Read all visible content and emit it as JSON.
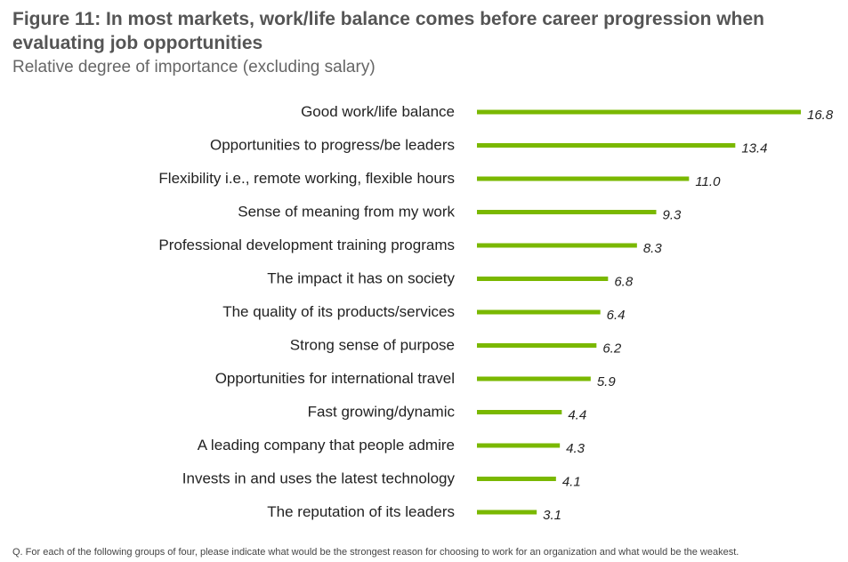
{
  "header": {
    "title": "Figure 11: In most markets, work/life balance comes before career progression when evaluating job opportunities",
    "subtitle": "Relative degree of importance (excluding salary)"
  },
  "footnote": "Q. For each of the following groups of four, please indicate what would be the strongest reason for choosing to work for an organization and what would be the weakest.",
  "colors": {
    "bar": "#7ab800"
  },
  "chart_data": {
    "type": "bar",
    "orientation": "horizontal",
    "title": "Figure 11: In most markets, work/life balance comes before career progression when evaluating job opportunities",
    "subtitle": "Relative degree of importance (excluding salary)",
    "categories": [
      "Good work/life balance",
      "Opportunities to progress/be leaders",
      "Flexibility i.e., remote working, flexible hours",
      "Sense of meaning from my work",
      "Professional development training programs",
      "The impact it has on society",
      "The quality of its products/services",
      "Strong sense of purpose",
      "Opportunities for international travel",
      "Fast growing/dynamic",
      "A leading company that people admire",
      "Invests in and uses the latest technology",
      "The reputation of its leaders"
    ],
    "values": [
      16.8,
      13.4,
      11.0,
      9.3,
      8.3,
      6.8,
      6.4,
      6.2,
      5.9,
      4.4,
      4.3,
      4.1,
      3.1
    ],
    "value_labels": [
      "16.8",
      "13.4",
      "11.0",
      "9.3",
      "8.3",
      "6.8",
      "6.4",
      "6.2",
      "5.9",
      "4.4",
      "4.3",
      "4.1",
      "3.1"
    ],
    "xlim": [
      0,
      16.8
    ],
    "grid": false,
    "legend": "none"
  }
}
